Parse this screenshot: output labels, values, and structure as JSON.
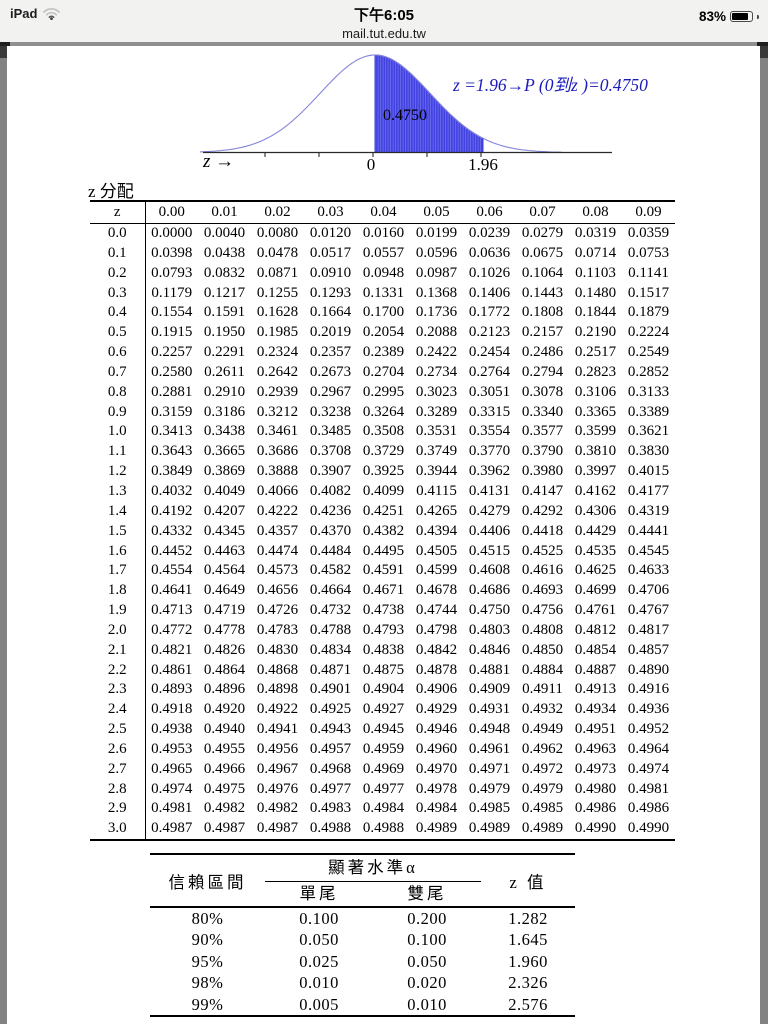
{
  "status_bar": {
    "device_label": "iPad",
    "time": "下午6:05",
    "url": "mail.tut.edu.tw",
    "battery_percent": "83%",
    "battery_level": 0.83
  },
  "figure": {
    "annotation": "z =1.96→P (0到z )=0.4750",
    "area_label": "0.4750",
    "x_axis_label": "z →",
    "tick_zero": "0",
    "tick_196": "1.96",
    "fill_color": "#4242e2",
    "hatch_line_color": "#6b6bee",
    "curve_color": "#8585da",
    "annotation_color": "#1b1bbd"
  },
  "chart_data": {
    "type": "area",
    "curve": "standard normal density",
    "shaded_region": {
      "from_z": 0,
      "to_z": 1.96,
      "area": 0.475
    },
    "xlabel": "z →",
    "x_tick_labels": [
      "0",
      "1.96"
    ],
    "annotation": "z =1.96→P (0到z )=0.4750"
  },
  "z_table": {
    "title": "z 分配",
    "header": [
      "z",
      "0.00",
      "0.01",
      "0.02",
      "0.03",
      "0.04",
      "0.05",
      "0.06",
      "0.07",
      "0.08",
      "0.09"
    ],
    "rows": [
      [
        "0.0",
        "0.0000",
        "0.0040",
        "0.0080",
        "0.0120",
        "0.0160",
        "0.0199",
        "0.0239",
        "0.0279",
        "0.0319",
        "0.0359"
      ],
      [
        "0.1",
        "0.0398",
        "0.0438",
        "0.0478",
        "0.0517",
        "0.0557",
        "0.0596",
        "0.0636",
        "0.0675",
        "0.0714",
        "0.0753"
      ],
      [
        "0.2",
        "0.0793",
        "0.0832",
        "0.0871",
        "0.0910",
        "0.0948",
        "0.0987",
        "0.1026",
        "0.1064",
        "0.1103",
        "0.1141"
      ],
      [
        "0.3",
        "0.1179",
        "0.1217",
        "0.1255",
        "0.1293",
        "0.1331",
        "0.1368",
        "0.1406",
        "0.1443",
        "0.1480",
        "0.1517"
      ],
      [
        "0.4",
        "0.1554",
        "0.1591",
        "0.1628",
        "0.1664",
        "0.1700",
        "0.1736",
        "0.1772",
        "0.1808",
        "0.1844",
        "0.1879"
      ],
      [
        "0.5",
        "0.1915",
        "0.1950",
        "0.1985",
        "0.2019",
        "0.2054",
        "0.2088",
        "0.2123",
        "0.2157",
        "0.2190",
        "0.2224"
      ],
      [
        "0.6",
        "0.2257",
        "0.2291",
        "0.2324",
        "0.2357",
        "0.2389",
        "0.2422",
        "0.2454",
        "0.2486",
        "0.2517",
        "0.2549"
      ],
      [
        "0.7",
        "0.2580",
        "0.2611",
        "0.2642",
        "0.2673",
        "0.2704",
        "0.2734",
        "0.2764",
        "0.2794",
        "0.2823",
        "0.2852"
      ],
      [
        "0.8",
        "0.2881",
        "0.2910",
        "0.2939",
        "0.2967",
        "0.2995",
        "0.3023",
        "0.3051",
        "0.3078",
        "0.3106",
        "0.3133"
      ],
      [
        "0.9",
        "0.3159",
        "0.3186",
        "0.3212",
        "0.3238",
        "0.3264",
        "0.3289",
        "0.3315",
        "0.3340",
        "0.3365",
        "0.3389"
      ],
      [
        "1.0",
        "0.3413",
        "0.3438",
        "0.3461",
        "0.3485",
        "0.3508",
        "0.3531",
        "0.3554",
        "0.3577",
        "0.3599",
        "0.3621"
      ],
      [
        "1.1",
        "0.3643",
        "0.3665",
        "0.3686",
        "0.3708",
        "0.3729",
        "0.3749",
        "0.3770",
        "0.3790",
        "0.3810",
        "0.3830"
      ],
      [
        "1.2",
        "0.3849",
        "0.3869",
        "0.3888",
        "0.3907",
        "0.3925",
        "0.3944",
        "0.3962",
        "0.3980",
        "0.3997",
        "0.4015"
      ],
      [
        "1.3",
        "0.4032",
        "0.4049",
        "0.4066",
        "0.4082",
        "0.4099",
        "0.4115",
        "0.4131",
        "0.4147",
        "0.4162",
        "0.4177"
      ],
      [
        "1.4",
        "0.4192",
        "0.4207",
        "0.4222",
        "0.4236",
        "0.4251",
        "0.4265",
        "0.4279",
        "0.4292",
        "0.4306",
        "0.4319"
      ],
      [
        "1.5",
        "0.4332",
        "0.4345",
        "0.4357",
        "0.4370",
        "0.4382",
        "0.4394",
        "0.4406",
        "0.4418",
        "0.4429",
        "0.4441"
      ],
      [
        "1.6",
        "0.4452",
        "0.4463",
        "0.4474",
        "0.4484",
        "0.4495",
        "0.4505",
        "0.4515",
        "0.4525",
        "0.4535",
        "0.4545"
      ],
      [
        "1.7",
        "0.4554",
        "0.4564",
        "0.4573",
        "0.4582",
        "0.4591",
        "0.4599",
        "0.4608",
        "0.4616",
        "0.4625",
        "0.4633"
      ],
      [
        "1.8",
        "0.4641",
        "0.4649",
        "0.4656",
        "0.4664",
        "0.4671",
        "0.4678",
        "0.4686",
        "0.4693",
        "0.4699",
        "0.4706"
      ],
      [
        "1.9",
        "0.4713",
        "0.4719",
        "0.4726",
        "0.4732",
        "0.4738",
        "0.4744",
        "0.4750",
        "0.4756",
        "0.4761",
        "0.4767"
      ],
      [
        "2.0",
        "0.4772",
        "0.4778",
        "0.4783",
        "0.4788",
        "0.4793",
        "0.4798",
        "0.4803",
        "0.4808",
        "0.4812",
        "0.4817"
      ],
      [
        "2.1",
        "0.4821",
        "0.4826",
        "0.4830",
        "0.4834",
        "0.4838",
        "0.4842",
        "0.4846",
        "0.4850",
        "0.4854",
        "0.4857"
      ],
      [
        "2.2",
        "0.4861",
        "0.4864",
        "0.4868",
        "0.4871",
        "0.4875",
        "0.4878",
        "0.4881",
        "0.4884",
        "0.4887",
        "0.4890"
      ],
      [
        "2.3",
        "0.4893",
        "0.4896",
        "0.4898",
        "0.4901",
        "0.4904",
        "0.4906",
        "0.4909",
        "0.4911",
        "0.4913",
        "0.4916"
      ],
      [
        "2.4",
        "0.4918",
        "0.4920",
        "0.4922",
        "0.4925",
        "0.4927",
        "0.4929",
        "0.4931",
        "0.4932",
        "0.4934",
        "0.4936"
      ],
      [
        "2.5",
        "0.4938",
        "0.4940",
        "0.4941",
        "0.4943",
        "0.4945",
        "0.4946",
        "0.4948",
        "0.4949",
        "0.4951",
        "0.4952"
      ],
      [
        "2.6",
        "0.4953",
        "0.4955",
        "0.4956",
        "0.4957",
        "0.4959",
        "0.4960",
        "0.4961",
        "0.4962",
        "0.4963",
        "0.4964"
      ],
      [
        "2.7",
        "0.4965",
        "0.4966",
        "0.4967",
        "0.4968",
        "0.4969",
        "0.4970",
        "0.4971",
        "0.4972",
        "0.4973",
        "0.4974"
      ],
      [
        "2.8",
        "0.4974",
        "0.4975",
        "0.4976",
        "0.4977",
        "0.4977",
        "0.4978",
        "0.4979",
        "0.4979",
        "0.4980",
        "0.4981"
      ],
      [
        "2.9",
        "0.4981",
        "0.4982",
        "0.4982",
        "0.4983",
        "0.4984",
        "0.4984",
        "0.4985",
        "0.4985",
        "0.4986",
        "0.4986"
      ],
      [
        "3.0",
        "0.4987",
        "0.4987",
        "0.4987",
        "0.4988",
        "0.4988",
        "0.4989",
        "0.4989",
        "0.4989",
        "0.4990",
        "0.4990"
      ]
    ]
  },
  "ci_table": {
    "header": {
      "confidence_interval": "信賴區間",
      "significance_level": "顯著水準α",
      "one_tail": "單尾",
      "two_tail": "雙尾",
      "z_value": "z 值"
    },
    "rows": [
      [
        "80%",
        "0.100",
        "0.200",
        "1.282"
      ],
      [
        "90%",
        "0.050",
        "0.100",
        "1.645"
      ],
      [
        "95%",
        "0.025",
        "0.050",
        "1.960"
      ],
      [
        "98%",
        "0.010",
        "0.020",
        "2.326"
      ],
      [
        "99%",
        "0.005",
        "0.010",
        "2.576"
      ]
    ]
  }
}
